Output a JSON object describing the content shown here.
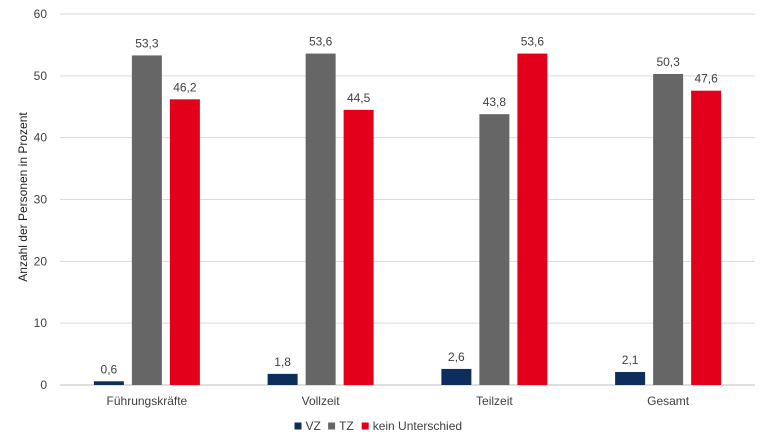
{
  "chart_data": {
    "type": "bar",
    "ylabel": "Anzahl der Personen in Prozent",
    "ylim": [
      0,
      60
    ],
    "yticks": [
      0,
      10,
      20,
      30,
      40,
      50,
      60
    ],
    "grid": true,
    "legend_position": "bottom",
    "categories": [
      "Führungskräfte",
      "Vollzeit",
      "Teilzeit",
      "Gesamt"
    ],
    "series": [
      {
        "name": "VZ",
        "color": "#0d2d5c",
        "values": [
          0.6,
          1.8,
          2.6,
          2.1
        ],
        "labels": [
          "0,6",
          "1,8",
          "2,6",
          "2,1"
        ]
      },
      {
        "name": "TZ",
        "color": "#666666",
        "values": [
          53.3,
          53.6,
          43.8,
          50.3
        ],
        "labels": [
          "53,3",
          "53,6",
          "43,8",
          "50,3"
        ]
      },
      {
        "name": "kein Unterschied",
        "color": "#e2001a",
        "values": [
          46.2,
          44.5,
          53.6,
          47.6
        ],
        "labels": [
          "46,2",
          "44,5",
          "53,6",
          "47,6"
        ]
      }
    ]
  }
}
